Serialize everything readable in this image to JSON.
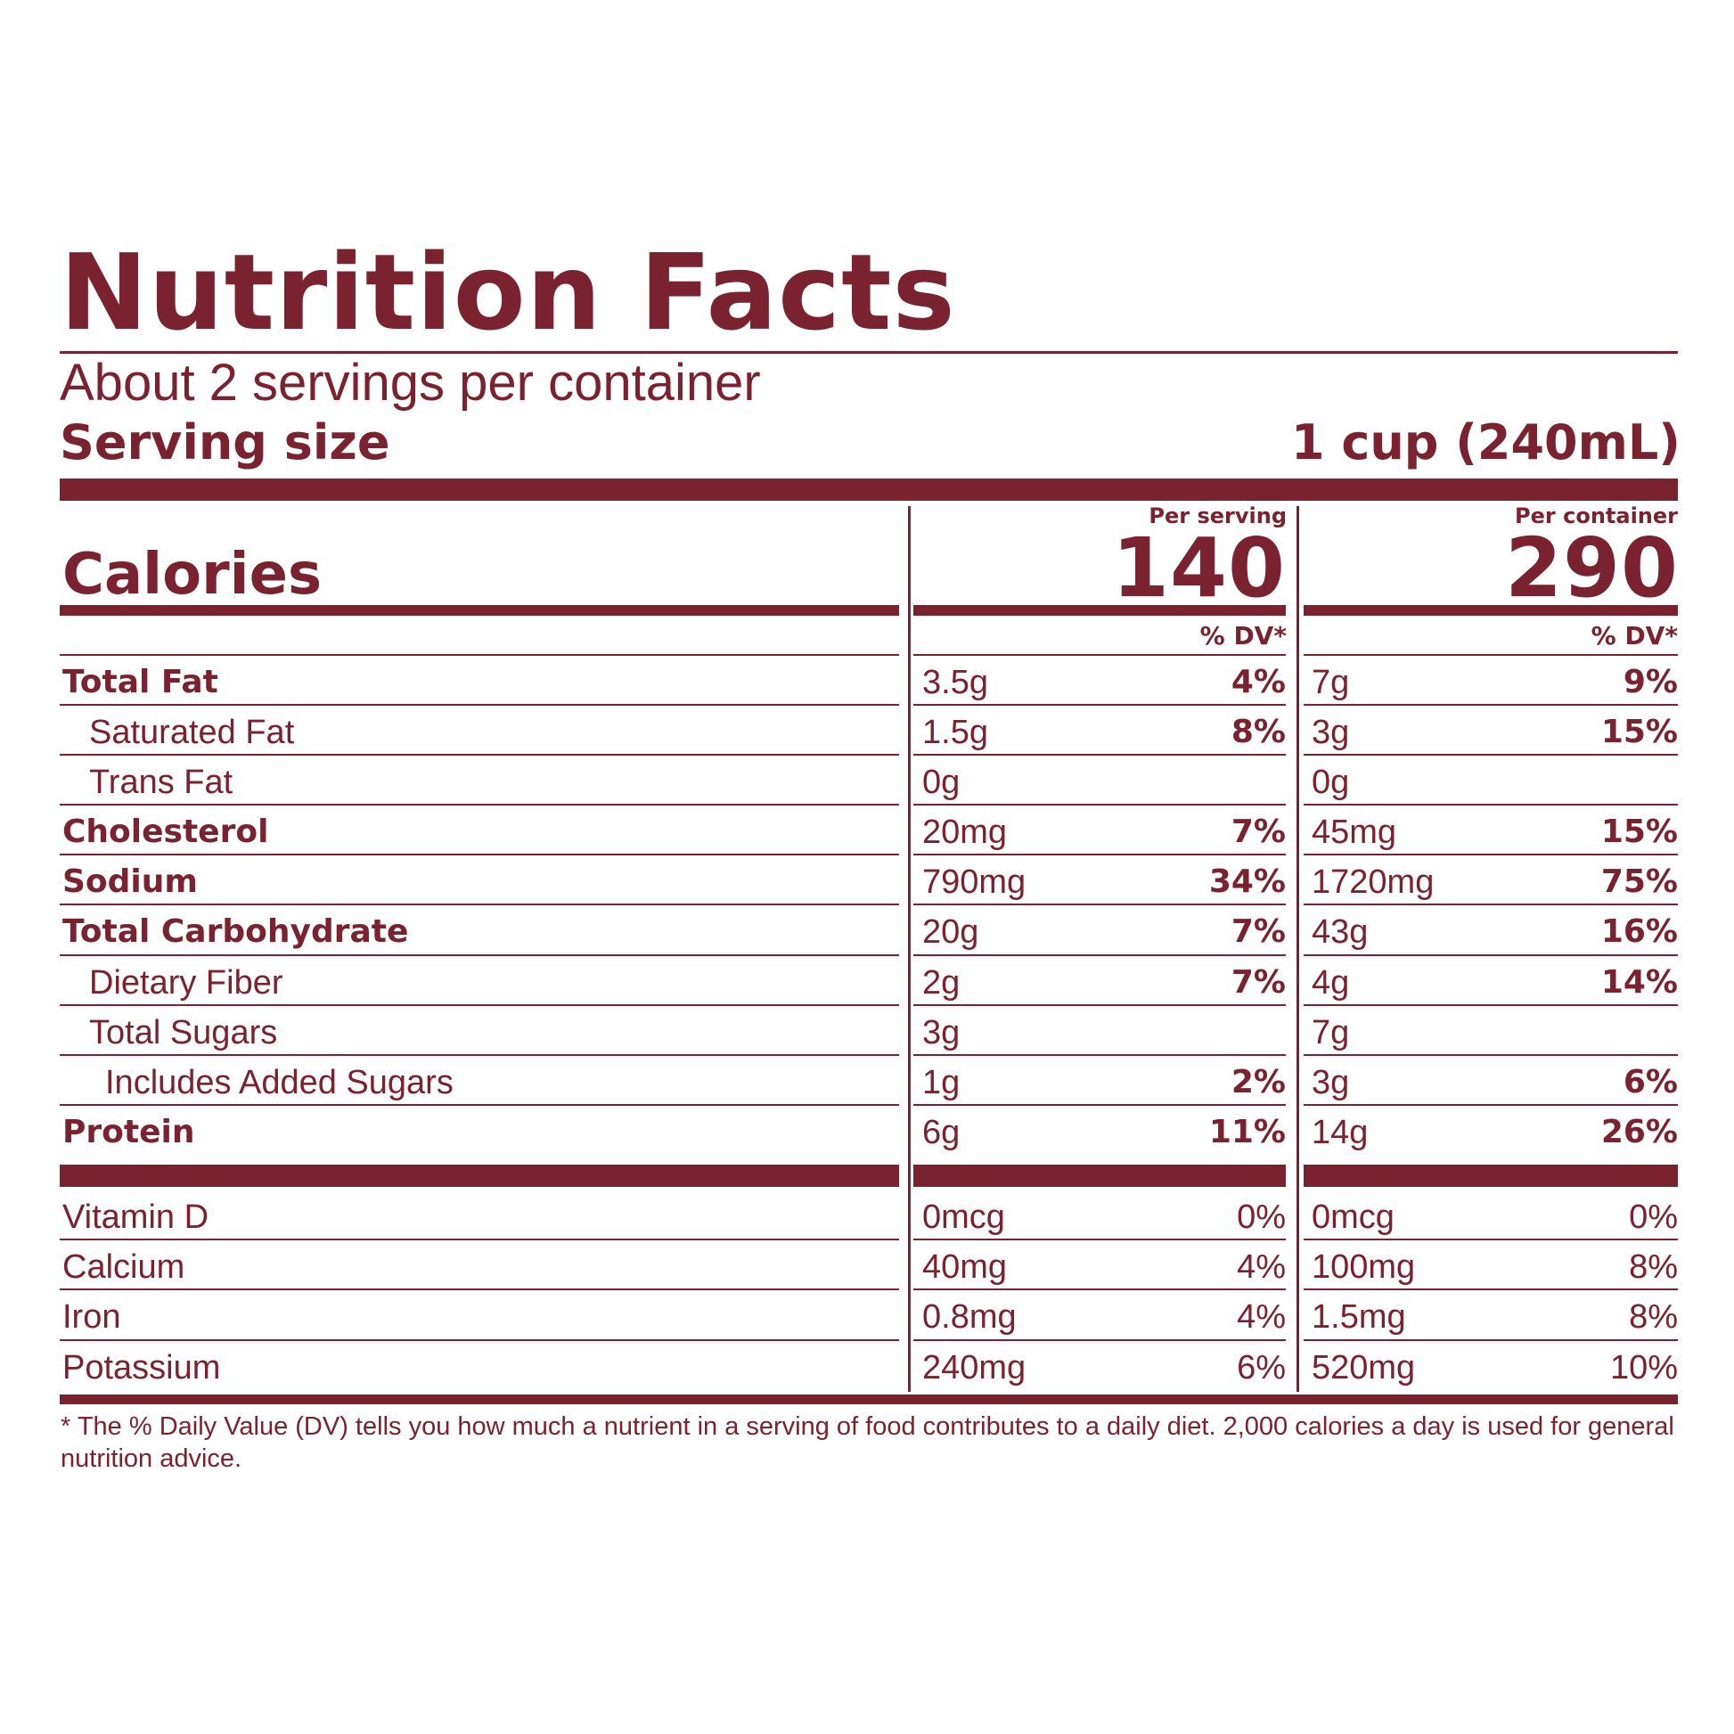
{
  "header": {
    "title": "Nutrition Facts",
    "servings_per_container": "About 2 servings per container",
    "serving_size_label": "Serving size",
    "serving_size_value": "1 cup (240mL)"
  },
  "calories": {
    "label": "Calories",
    "per_serving_label": "Per serving",
    "per_container_label": "Per container",
    "per_serving_value": "140",
    "per_container_value": "290"
  },
  "dv_header": "% DV*",
  "nutrients": [
    {
      "name": "Total Fat",
      "serving_amount": "3.5g",
      "serving_dv": "4%",
      "container_amount": "7g",
      "container_dv": "9%"
    },
    {
      "name": "Saturated Fat",
      "serving_amount": "1.5g",
      "serving_dv": "8%",
      "container_amount": "3g",
      "container_dv": "15%"
    },
    {
      "name": "Trans Fat",
      "serving_amount": "0g",
      "serving_dv": "",
      "container_amount": "0g",
      "container_dv": ""
    },
    {
      "name": "Cholesterol",
      "serving_amount": "20mg",
      "serving_dv": "7%",
      "container_amount": "45mg",
      "container_dv": "15%"
    },
    {
      "name": "Sodium",
      "serving_amount": "790mg",
      "serving_dv": "34%",
      "container_amount": "1720mg",
      "container_dv": "75%"
    },
    {
      "name": "Total Carbohydrate",
      "serving_amount": "20g",
      "serving_dv": "7%",
      "container_amount": "43g",
      "container_dv": "16%"
    },
    {
      "name": "Dietary Fiber",
      "serving_amount": "2g",
      "serving_dv": "7%",
      "container_amount": "4g",
      "container_dv": "14%"
    },
    {
      "name": "Total Sugars",
      "serving_amount": "3g",
      "serving_dv": "",
      "container_amount": "7g",
      "container_dv": ""
    },
    {
      "name": "Includes Added Sugars",
      "serving_amount": "1g",
      "serving_dv": "2%",
      "container_amount": "3g",
      "container_dv": "6%"
    },
    {
      "name": "Protein",
      "serving_amount": "6g",
      "serving_dv": "11%",
      "container_amount": "14g",
      "container_dv": "26%"
    }
  ],
  "vitamins": [
    {
      "name": "Vitamin D",
      "serving_amount": "0mcg",
      "serving_dv": "0%",
      "container_amount": "0mcg",
      "container_dv": "0%"
    },
    {
      "name": "Calcium",
      "serving_amount": "40mg",
      "serving_dv": "4%",
      "container_amount": "100mg",
      "container_dv": "8%"
    },
    {
      "name": "Iron",
      "serving_amount": "0.8mg",
      "serving_dv": "4%",
      "container_amount": "1.5mg",
      "container_dv": "8%"
    },
    {
      "name": "Potassium",
      "serving_amount": "240mg",
      "serving_dv": "6%",
      "container_amount": "520mg",
      "container_dv": "10%"
    }
  ],
  "footnote": "* The % Daily Value (DV) tells you how much a nutrient in a serving of food contributes to a daily diet. 2,000 calories a day is used for general nutrition advice.",
  "colors": {
    "ink": "#7a2230",
    "background": "#ffffff"
  }
}
